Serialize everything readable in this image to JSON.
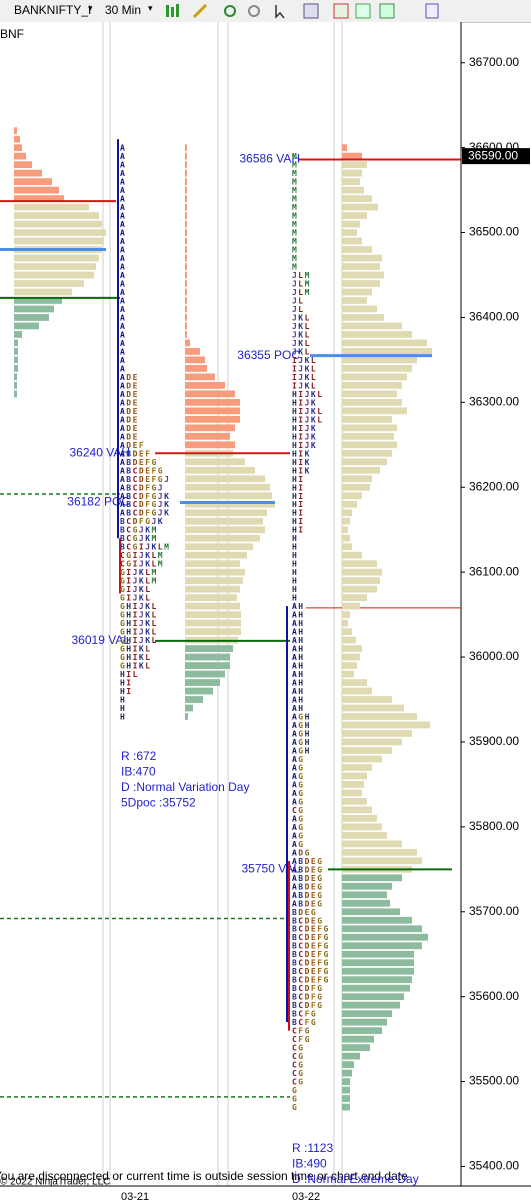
{
  "toolbar": {
    "instrument": "BANKNIFTY_I",
    "interval": "30 Min"
  },
  "chart_data": {
    "type": "market-profile",
    "symbol_label": "BNF",
    "status": "You are disconnected or current time is outside session time or chart end date",
    "copyright": "© 2022 NinjaTrader, LLC",
    "dates": [
      "03-21",
      "03-22"
    ],
    "ylim": [
      35377,
      36748
    ],
    "yticks": [
      {
        "value": 35400,
        "label": "35400.00"
      },
      {
        "value": 35500,
        "label": "35500.00"
      },
      {
        "value": 35600,
        "label": "35600.00"
      },
      {
        "value": 35700,
        "label": "35700.00"
      },
      {
        "value": 35800,
        "label": "35800.00"
      },
      {
        "value": 35900,
        "label": "35900.00"
      },
      {
        "value": 36000,
        "label": "36000.00"
      },
      {
        "value": 36100,
        "label": "36100.00"
      },
      {
        "value": 36200,
        "label": "36200.00"
      },
      {
        "value": 36300,
        "label": "36300.00"
      },
      {
        "value": 36400,
        "label": "36400.00"
      },
      {
        "value": 36500,
        "label": "36500.00"
      },
      {
        "value": 36600,
        "label": "36600.00"
      },
      {
        "value": 36700,
        "label": "36700.00"
      }
    ],
    "last_price": {
      "value": 36590,
      "label": "36590.00"
    },
    "colors": {
      "above_va": "#f79c7c",
      "value_area": "#e0dab2",
      "below_va": "#8dbb9e",
      "vah": "#e01010",
      "poc": "#4a90e8",
      "val": "#0a6a0a",
      "ib": "#1010a0",
      "extension": "#d01010",
      "naked": "#1a7a1a",
      "labels": "#2222cc"
    },
    "tpo_colors": {
      "A": "#0c0c80",
      "B": "#20308a",
      "C": "#8a1010",
      "D": "#8a4a10",
      "E": "#9a5a20",
      "F": "#a07010",
      "G": "#8a6a1a",
      "H": "#1c2a5a",
      "I": "#901818",
      "J": "#5a3a8a",
      "K": "#20308a",
      "L": "#8a1818",
      "M": "#2a7a3a"
    },
    "naked_levels": [
      36192,
      35692,
      35482
    ],
    "reference_lines": [
      36058
    ],
    "profiles": [
      {
        "bars_top": 36620,
        "bars_step": 10,
        "bars": [
          3,
          6,
          8,
          12,
          18,
          28,
          38,
          45,
          50,
          75,
          85,
          88,
          92,
          90,
          88,
          85,
          82,
          80,
          70,
          58,
          48,
          40,
          35,
          25,
          8,
          4,
          4,
          4,
          4,
          3,
          3,
          3
        ],
        "vah": 36537,
        "poc": 36480,
        "val": 36423
      },
      {
        "tpo_top": 36600,
        "tpo_step": 10,
        "tpo_rows": [
          "A",
          "A",
          "A",
          "A",
          "A",
          "A",
          "A",
          "A",
          "A",
          "A",
          "A",
          "A",
          "A",
          "A",
          "A",
          "A",
          "A",
          "A",
          "A",
          "A",
          "A",
          "A",
          "A",
          "A",
          "A",
          "A",
          "A",
          "ADE",
          "ADE",
          "ADE",
          "ADE",
          "ADE",
          "ADE",
          "ADE",
          "ADE",
          "ADEF",
          "ABDEF",
          "ABDEFG",
          "ABCDEFG",
          "ABCDEFGJ",
          "ABCDFGJ",
          "ABCDFGJK",
          "ABCDFGJK",
          "ABCDFGJK",
          "BCDFGJK",
          "BCGJKM",
          "BCGJKM",
          "BCGIJKLM",
          "CGIJKLM",
          "CGIJKLM",
          "GIJKLM",
          "GIJKLM",
          "GIJKL",
          "GIJKL",
          "GHIJKL",
          "GHIJKL",
          "GHIJKL",
          "GHIJKL",
          "GHIJKL",
          "GHIKL",
          "GHIKL",
          "GHIKL",
          "HIL",
          "HI",
          "HI",
          "H",
          "H",
          "H"
        ],
        "bars_top": 36600,
        "bars_step": 10,
        "bars": [
          2,
          2,
          2,
          2,
          2,
          2,
          2,
          2,
          2,
          2,
          2,
          2,
          2,
          2,
          2,
          2,
          2,
          2,
          2,
          2,
          2,
          2,
          2,
          5,
          15,
          20,
          22,
          30,
          40,
          50,
          55,
          55,
          55,
          50,
          45,
          50,
          48,
          60,
          70,
          80,
          85,
          87,
          90,
          82,
          78,
          80,
          75,
          68,
          62,
          55,
          60,
          58,
          55,
          52,
          55,
          56,
          56,
          56,
          53,
          48,
          45,
          45,
          40,
          35,
          28,
          18,
          8,
          3
        ],
        "vah": 36240,
        "poc": 36182,
        "val": 36019,
        "vah_label": "36240 VAH",
        "poc_label": "36182 POC",
        "val_label": "36019 VAL",
        "ib_range": [
          36610,
          36140
        ],
        "range_extension": [
          36140,
          36075
        ],
        "stats": [
          "R :672",
          "IB:470",
          "D :Normal Variation Day",
          "5Dpoc :35752"
        ]
      },
      {
        "tpo_top": 36590,
        "tpo_step": 10,
        "tpo_rows": [
          "M",
          "M",
          "M",
          "M",
          "M",
          "M",
          "M",
          "M",
          "M",
          "M",
          "M",
          "M",
          "M",
          "M",
          "JLM",
          "JLM",
          "JLM",
          "JL",
          "JL",
          "JKL",
          "JKL",
          "JKL",
          "JKL",
          "JKL",
          "IJKL",
          "IJKL",
          "IJKL",
          "IJKL",
          "HIJKL",
          "HIJK",
          "HIJKL",
          "HIJKL",
          "HIJK",
          "HIJK",
          "HIJK",
          "HIK",
          "HIK",
          "HIK",
          "HI",
          "HI",
          "HI",
          "HI",
          "HI",
          "HI",
          "HI",
          "H",
          "H",
          "H",
          "H",
          "H",
          "H",
          "H",
          "H",
          "AH",
          "AH",
          "AH",
          "AH",
          "AH",
          "AH",
          "AH",
          "AH",
          "AH",
          "AH",
          "AH",
          "AH",
          "AH",
          "AGH",
          "AGH",
          "AGH",
          "AGH",
          "AGH",
          "AG",
          "AG",
          "AG",
          "AG",
          "AG",
          "AG",
          "CG",
          "AG",
          "AG",
          "AG",
          "AG",
          "ADG",
          "ABDEG",
          "ABDEG",
          "ABDEG",
          "ABDEG",
          "ABDEG",
          "ABDEG",
          "BDEG",
          "BCDEG",
          "BCDEFG",
          "BCDEFG",
          "BCDEFG",
          "BCDEFG",
          "BCDEFG",
          "BCDEFG",
          "BCDEFG",
          "BCDFG",
          "BCDFG",
          "BCDFG",
          "BCFG",
          "BCFG",
          "CFG",
          "CFG",
          "CG",
          "CG",
          "CG",
          "CG",
          "CG",
          "G",
          "G",
          "G"
        ],
        "bars_top": 36600,
        "bars_step": 10,
        "bars": [
          5,
          20,
          25,
          20,
          18,
          22,
          30,
          36,
          25,
          18,
          15,
          20,
          30,
          40,
          38,
          42,
          38,
          30,
          25,
          35,
          42,
          60,
          70,
          85,
          90,
          75,
          70,
          65,
          60,
          55,
          60,
          65,
          50,
          55,
          52,
          55,
          50,
          45,
          38,
          30,
          28,
          20,
          15,
          10,
          8,
          6,
          8,
          10,
          20,
          35,
          40,
          38,
          35,
          25,
          18,
          8,
          6,
          10,
          14,
          20,
          18,
          15,
          12,
          25,
          30,
          50,
          62,
          75,
          88,
          70,
          60,
          50,
          40,
          30,
          25,
          22,
          20,
          25,
          30,
          35,
          40,
          45,
          60,
          75,
          80,
          70,
          60,
          50,
          45,
          48,
          58,
          70,
          80,
          86,
          80,
          72,
          72,
          72,
          70,
          68,
          62,
          58,
          50,
          45,
          40,
          32,
          28,
          18,
          12,
          10,
          8,
          8,
          8,
          8
        ],
        "vah": 36586,
        "poc": 36355,
        "val": 35750,
        "vah_label": "36586 VAH",
        "poc_label": "36355 POC",
        "val_label": "35750 VAL",
        "ib_range": [
          36060,
          35570
        ],
        "range_extension": [
          35760,
          35560
        ],
        "stats": [
          "R :1123",
          "IB:490",
          "D :Normal Extreme Day"
        ]
      }
    ]
  }
}
